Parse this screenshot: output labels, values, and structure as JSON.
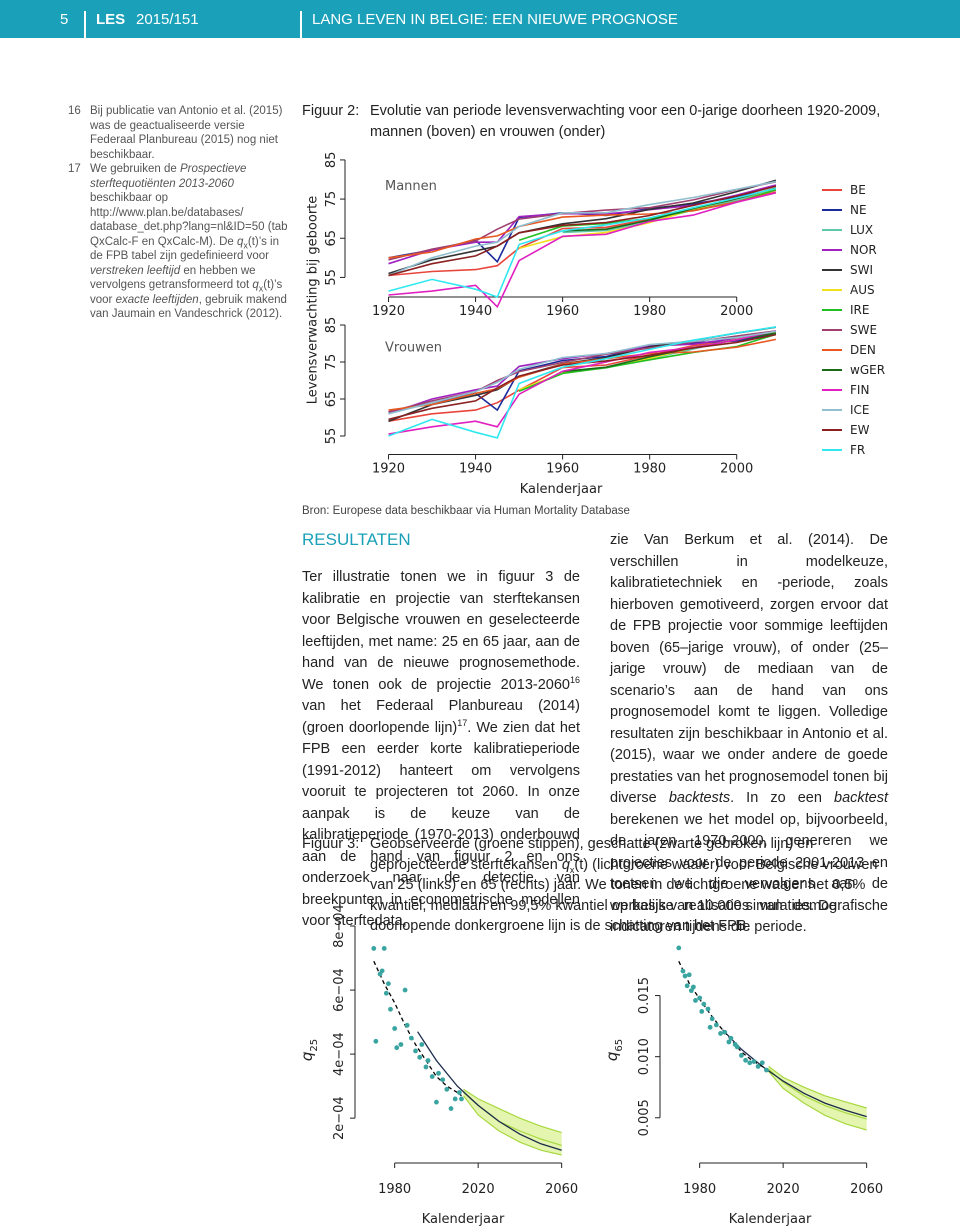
{
  "header": {
    "page": "5",
    "series": "LES",
    "number": "2015/151",
    "title": "LANG LEVEN IN BELGIE: EEN NIEUWE PROGNOSE"
  },
  "footnotes": [
    {
      "number": "16",
      "text": [
        "Bij publicatie van Antonio et al. (2015) was de geactualiseerde versie Federaal Planbureau (2015) nog niet beschikbaar."
      ]
    },
    {
      "number": "17",
      "text": [
        "We gebruiken de ",
        "Prospectieve sterftequotiënten 2013-2060",
        " beschikbaar op http://www.plan.be/databases/ database_det.php?lang=nl&ID=50 (tab QxCalc-F en QxCalc-M). De ",
        "q",
        "x",
        "(t)’s in de FPB tabel zijn gedefinieerd voor ",
        "verstreken leeftijd",
        " en hebben we vervolgens getransformeerd tot ",
        "q",
        "x",
        "(t)’s voor ",
        "exacte leeftijden",
        ", gebruik makend van Jaumain en Vandeschrick (2012)."
      ]
    }
  ],
  "figure2": {
    "label": "Figuur 2:",
    "caption": "Evolutie van periode levensverwachting voor een 0-jarige doorheen 1920-2009, mannen (boven) en vrouwen (onder)",
    "source": "Bron: Europese data beschikbaar via Human Mortality Database",
    "chart": {
      "type": "line",
      "y_label": "Levensverwachting bij geboorte",
      "x_label": "Kalenderjaar",
      "x": [
        1920,
        1930,
        1940,
        1945,
        1950,
        1960,
        1970,
        1980,
        1990,
        2000,
        2009
      ],
      "xlim": [
        1910,
        2015
      ],
      "xticks": [
        1920,
        1940,
        1960,
        1980,
        2000
      ],
      "series": [
        {
          "name": "BE",
          "color": "#e8463b"
        },
        {
          "name": "NE",
          "color": "#1a2a9a"
        },
        {
          "name": "LUX",
          "color": "#5fc8a8"
        },
        {
          "name": "NOR",
          "color": "#a020c0"
        },
        {
          "name": "SWI",
          "color": "#333333"
        },
        {
          "name": "AUS",
          "color": "#f2e01a"
        },
        {
          "name": "IRE",
          "color": "#22c022"
        },
        {
          "name": "SWE",
          "color": "#a04070"
        },
        {
          "name": "DEN",
          "color": "#e85820"
        },
        {
          "name": "wGER",
          "color": "#1a6a1a"
        },
        {
          "name": "FIN",
          "color": "#e020c0"
        },
        {
          "name": "ICE",
          "color": "#90c0d0"
        },
        {
          "name": "EW",
          "color": "#8a2020"
        },
        {
          "name": "FR",
          "color": "#30e8f0"
        }
      ],
      "panels": [
        {
          "title": "Mannen",
          "ylim": [
            50,
            86
          ],
          "yticks": [
            55,
            65,
            75,
            85
          ],
          "values": [
            [
              55.5,
              56.5,
              57,
              58,
              62.5,
              67.5,
              67.8,
              69.9,
              72.5,
              74.6,
              77.3
            ],
            [
              60,
              62,
              64.5,
              59,
              70.3,
              71.5,
              70.8,
              72.6,
              73.8,
              75.5,
              78.5
            ],
            [
              null,
              null,
              null,
              null,
              null,
              66.5,
              67,
              69.1,
              72.3,
              74.6,
              77.6
            ],
            [
              58.5,
              62,
              64,
              64,
              70.5,
              71.3,
              71.2,
              72.3,
              73.4,
              76,
              78.6
            ],
            [
              56,
              59.5,
              61.8,
              63,
              66.4,
              68.7,
              70,
              72.4,
              74,
              76.9,
              79.8
            ],
            [
              null,
              null,
              null,
              null,
              62.4,
              65.4,
              66.5,
              69,
              72.4,
              75.2,
              77.6
            ],
            [
              null,
              null,
              null,
              null,
              64.5,
              68.1,
              68.8,
              70.1,
              72.1,
              74.2,
              77.4
            ],
            [
              59.5,
              62.2,
              64.3,
              67.3,
              69.9,
              71.3,
              72.2,
              72.8,
              74.8,
              77.4,
              79.4
            ],
            [
              60,
              61.5,
              64.8,
              65.6,
              68,
              70.4,
              70.9,
              71.2,
              72,
              74.3,
              76.8
            ],
            [
              null,
              null,
              null,
              null,
              null,
              66.9,
              67.3,
              69.6,
              72.6,
              75.1,
              77.8
            ],
            [
              50.5,
              51.5,
              53,
              47.5,
              59.3,
              65.5,
              66,
              69.3,
              70.9,
              74.2,
              76.6
            ],
            [
              55.5,
              60,
              63,
              64,
              68,
              71.5,
              71.5,
              73.6,
              75.4,
              77.5,
              79.5
            ],
            [
              55.5,
              58.5,
              60.5,
              63,
              66.4,
              68.3,
              69,
              70.8,
              73.4,
              75.8,
              78.3
            ],
            [
              51.5,
              54.5,
              52,
              50,
              63.4,
              66.9,
              68.4,
              70.2,
              72.8,
              75.3,
              77.7
            ]
          ]
        },
        {
          "title": "Vrouwen",
          "ylim": [
            50,
            87
          ],
          "yticks": [
            55,
            65,
            75,
            85
          ],
          "values": [
            [
              59,
              61,
              62,
              64,
              67.4,
              73.5,
              74.2,
              76.8,
              79.4,
              81,
              82.8
            ],
            [
              61.5,
              64,
              66.5,
              62,
              72.6,
              75.4,
              76.5,
              79.3,
              80.2,
              80.7,
              82.7
            ],
            [
              null,
              null,
              null,
              null,
              null,
              72.2,
              73.4,
              75.9,
              78.5,
              81.3,
              83.2
            ],
            [
              61,
              65,
              67.5,
              68.5,
              73.8,
              75.9,
              77.3,
              79.3,
              79.8,
              81.4,
              83.2
            ],
            [
              59,
              63.5,
              66,
              67.5,
              71.1,
              74.5,
              76.2,
              79.1,
              80.8,
              82.8,
              84.4
            ],
            [
              null,
              null,
              null,
              null,
              67.5,
              72,
              73.5,
              76,
              78.9,
              81.1,
              83.2
            ],
            [
              null,
              null,
              null,
              null,
              67.1,
              71.9,
              73.5,
              75.6,
              77.6,
              79.2,
              82.5
            ],
            [
              61.5,
              64.5,
              67,
              70,
              72.4,
              74.9,
              77.1,
              78.8,
              80.4,
              82,
              83.4
            ],
            [
              62,
              63.5,
              66.5,
              67.8,
              70.9,
              74.4,
              75.9,
              77.3,
              77.7,
              79,
              81.1
            ],
            [
              null,
              null,
              null,
              null,
              null,
              72.4,
              73.6,
              76.4,
              78.9,
              81,
              82.8
            ],
            [
              55.5,
              57.5,
              59,
              57.5,
              66.3,
              72.5,
              75,
              77.6,
              78.9,
              81,
              83.4
            ],
            [
              61,
              64,
              67,
              69.5,
              73,
              76.2,
              77.3,
              79.7,
              80.6,
              81.6,
              83.3
            ],
            [
              59.5,
              62.5,
              64.5,
              68,
              71.2,
              74.2,
              75.3,
              76.8,
              78.8,
              80.3,
              82.4
            ],
            [
              55,
              59.5,
              56,
              54.5,
              69.2,
              73.6,
              75.9,
              78.4,
              80.9,
              82.8,
              84.5
            ]
          ]
        }
      ]
    }
  },
  "results": {
    "heading": "RESULTATEN",
    "left": [
      "Ter illustratie tonen we in figuur 3 de kalibratie en projectie van sterftekansen voor Belgische vrouwen en geselecteerde leeftijden, met name: 25 en 65 jaar, aan de hand van de nieuwe prognosemethode. We tonen ook de projectie 2013-2060",
      "16",
      " van het Federaal Planbureau (2014) (groen doorlopende lijn)",
      "17",
      ". We zien dat het FPB een eerder korte kalibratieperiode (1991-2012) hanteert om vervolgens vooruit te projecteren tot 2060. In onze aanpak is de keuze van de kalibratieperiode (1970-2013) onderbouwd aan de hand van figuur 2 en ons onderzoek naar de detectie van breekpunten in econometrische modellen voor sterftedata,"
    ],
    "right": [
      "zie Van Berkum et al. (2014). De verschillen in modelkeuze, kalibratietechniek en -periode, zoals hierboven gemotiveerd, zorgen ervoor dat de FPB projectie voor sommige leeftijden boven (65–jarige vrouw), of onder (25–jarige vrouw) de mediaan van de scenario’s aan de hand van ons prognosemodel komt te liggen. Volledige resultaten zijn beschikbaar in Antonio et al. (2015), waar we onder andere de goede prestaties van het prognosemodel tonen bij diverse ",
      "backtests",
      ". In zo een ",
      "backtest",
      " berekenen we het model op, bijvoorbeeld, de jaren 1970-2000, genereren we projecties voor de periode 2001-2013 en toetsen we die vervolgens aan de werkelijke realisaties van demografische indicatoren tijdens die periode."
    ]
  },
  "figure3": {
    "label": "Figuur 3:",
    "caption": [
      "Geobserveerde (groene stippen), geschatte (zwarte gebroken lijn) en geprojecteerde sterftekansen ",
      "q",
      "x",
      "(t)",
      " (lichtgroene waaier) voor Belgische vrouwen van 25 (links) en 65 (rechts) jaar. We tonen in de lichtgroene waaier het 0,5% kwantiel, mediaan en 99,5% kwantiel op basis van 10.000 simulaties. De doorlopende donkergroene lijn is de schatting van het FPB."
    ],
    "charts": [
      {
        "type": "scatter",
        "y_label": "q",
        "y_label_sub": "25",
        "x_label": "Kalenderjaar",
        "xlim": [
          1961,
          2064
        ],
        "xticks": [
          1980,
          2020,
          2060
        ],
        "ylim": [
          6e-05,
          0.00085
        ],
        "yticks": [
          {
            "value": 0.0002,
            "label": "2e−04"
          },
          {
            "value": 0.0004,
            "label": "4e−04"
          },
          {
            "value": 0.0006,
            "label": "6e−04"
          },
          {
            "value": 0.0008,
            "label": "8e−04"
          }
        ],
        "observed": {
          "color": "#3aa5a0",
          "x": [
            1970,
            1971,
            1973,
            1974,
            1975,
            1976,
            1977,
            1978,
            1980,
            1981,
            1983,
            1985,
            1986,
            1988,
            1990,
            1992,
            1993,
            1995,
            1996,
            1998,
            2000,
            2001,
            2003,
            2005,
            2007,
            2009,
            2011,
            2012
          ],
          "values": [
            0.00073,
            0.00044,
            0.00065,
            0.00066,
            0.00073,
            0.00059,
            0.00062,
            0.00054,
            0.00048,
            0.00042,
            0.00043,
            0.0006,
            0.00049,
            0.00045,
            0.00041,
            0.00039,
            0.00043,
            0.00036,
            0.00038,
            0.00033,
            0.00025,
            0.00034,
            0.00032,
            0.00029,
            0.00023,
            0.00026,
            0.00028,
            0.00026
          ]
        },
        "fitted": {
          "color": "#000000",
          "x": [
            1970,
            1975,
            1980,
            1985,
            1990,
            1995,
            2000,
            2005,
            2010,
            2012
          ],
          "values": [
            0.00069,
            0.00062,
            0.00056,
            0.00049,
            0.00043,
            0.00038,
            0.00033,
            0.0003,
            0.00028,
            0.00027
          ]
        },
        "fan": {
          "color": "#a8d840",
          "x": [
            2013,
            2020,
            2030,
            2040,
            2050,
            2060
          ],
          "lower": [
            0.00027,
            0.00021,
            0.00016,
            0.000125,
            0.0001,
            8.5e-05
          ],
          "median": [
            0.00028,
            0.00024,
            0.00019,
            0.00016,
            0.000135,
            0.000115
          ],
          "upper": [
            0.00029,
            0.00026,
            0.00023,
            0.0002,
            0.000175,
            0.000155
          ]
        },
        "fpb": {
          "color": "#1a2a4a",
          "x": [
            1991,
            2000,
            2010,
            2020,
            2030,
            2040,
            2050,
            2060
          ],
          "values": [
            0.00047,
            0.00038,
            0.0003,
            0.00024,
            0.00019,
            0.00015,
            0.00012,
            0.0001
          ]
        }
      },
      {
        "type": "scatter",
        "y_label": "q",
        "y_label_sub": "65",
        "x_label": "Kalenderjaar",
        "xlim": [
          1961,
          2064
        ],
        "xticks": [
          1980,
          2020,
          2060
        ],
        "ylim": [
          0.0013,
          0.022
        ],
        "yticks": [
          0.005,
          {
            "value": 0.01,
            "label": "0.010"
          },
          0.015
        ],
        "observed": {
          "color": "#3aa5a0",
          "x": [
            1970,
            1972,
            1973,
            1974,
            1975,
            1976,
            1977,
            1978,
            1980,
            1981,
            1982,
            1984,
            1985,
            1986,
            1988,
            1990,
            1992,
            1994,
            1995,
            1997,
            1998,
            2000,
            2002,
            2004,
            2006,
            2008,
            2010,
            2012
          ],
          "values": [
            0.0189,
            0.017,
            0.0166,
            0.0158,
            0.0167,
            0.0154,
            0.0157,
            0.0146,
            0.0148,
            0.0137,
            0.0143,
            0.0139,
            0.0124,
            0.0131,
            0.0126,
            0.0119,
            0.012,
            0.0112,
            0.0115,
            0.011,
            0.0108,
            0.0101,
            0.0097,
            0.0095,
            0.0096,
            0.0092,
            0.0095,
            0.0089
          ]
        },
        "fitted": {
          "color": "#000000",
          "x": [
            1970,
            1975,
            1980,
            1985,
            1990,
            1995,
            2000,
            2005,
            2010,
            2012
          ],
          "values": [
            0.0178,
            0.016,
            0.0147,
            0.0135,
            0.0124,
            0.0114,
            0.0104,
            0.0097,
            0.0092,
            0.009
          ]
        },
        "fan": {
          "color": "#a8d840",
          "x": [
            2013,
            2020,
            2030,
            2040,
            2050,
            2060
          ],
          "lower": [
            0.0088,
            0.0074,
            0.0062,
            0.0052,
            0.0045,
            0.004
          ],
          "median": [
            0.009,
            0.0079,
            0.0068,
            0.006,
            0.0054,
            0.0049
          ],
          "upper": [
            0.0092,
            0.0083,
            0.0075,
            0.0068,
            0.0063,
            0.0058
          ]
        },
        "fpb": {
          "color": "#1a2a4a",
          "x": [
            1991,
            2000,
            2010,
            2020,
            2030,
            2040,
            2050,
            2060
          ],
          "values": [
            0.0122,
            0.0106,
            0.0092,
            0.008,
            0.007,
            0.0062,
            0.0056,
            0.0051
          ]
        }
      }
    ]
  }
}
